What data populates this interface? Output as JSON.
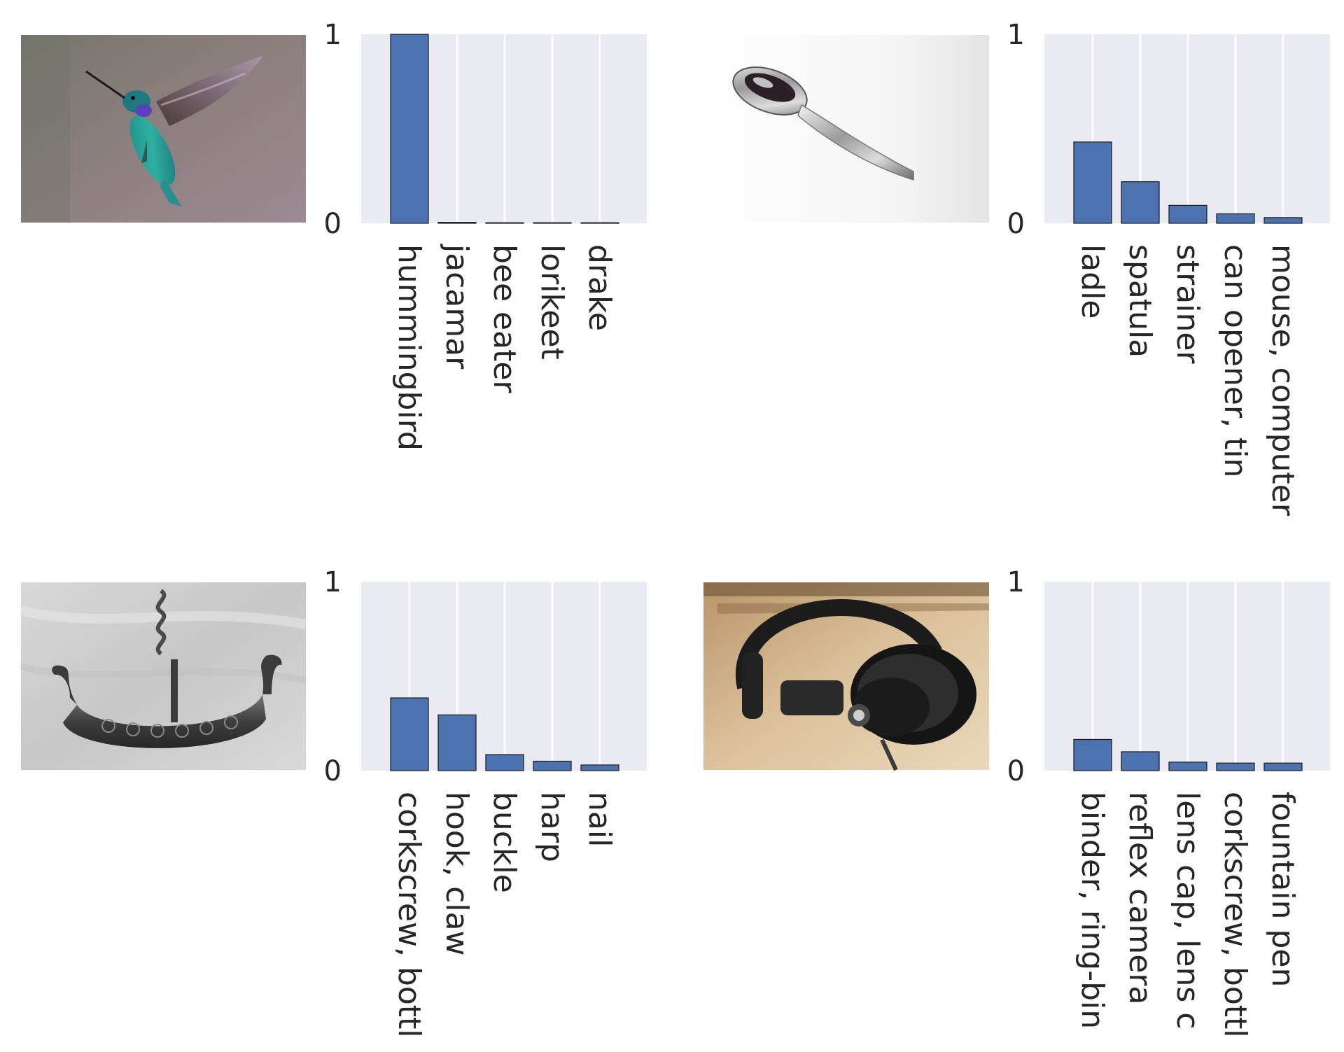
{
  "colors": {
    "bar": "#4c72b0",
    "bar_edge": "#1a1a1a",
    "axes_bg": "#eaeaf2",
    "grid": "#ffffff",
    "text": "#262626"
  },
  "chart_data": [
    {
      "type": "bar",
      "image": "hummingbird-photo",
      "categories": [
        "hummingbird",
        "jacamar",
        "bee eater",
        "lorikeet",
        "drake"
      ],
      "values": [
        1.0,
        0.005,
        0.001,
        0.001,
        0.001
      ],
      "yticks": [
        "0",
        "1"
      ],
      "ylim": [
        0,
        1
      ],
      "grid": "vertical"
    },
    {
      "type": "bar",
      "image": "spoon-photo",
      "categories": [
        "ladle",
        "spatula",
        "strainer",
        "can opener, tin",
        "mouse, computer"
      ],
      "values": [
        0.43,
        0.22,
        0.095,
        0.05,
        0.03
      ],
      "yticks": [
        "0",
        "1"
      ],
      "ylim": [
        0,
        1
      ],
      "grid": "vertical"
    },
    {
      "type": "bar",
      "image": "viking-ship-corkscrew-photo",
      "categories": [
        "corkscrew, bottl",
        "hook, claw",
        "buckle",
        "harp",
        "nail"
      ],
      "values": [
        0.385,
        0.295,
        0.085,
        0.05,
        0.03
      ],
      "yticks": [
        "0",
        "1"
      ],
      "ylim": [
        0,
        1
      ],
      "grid": "vertical"
    },
    {
      "type": "bar",
      "image": "headphones-photo",
      "categories": [
        "binder, ring-bin",
        "reflex camera",
        "lens cap, lens c",
        "corkscrew, bottl",
        "fountain pen"
      ],
      "values": [
        0.165,
        0.1,
        0.045,
        0.04,
        0.04
      ],
      "yticks": [
        "0",
        "1"
      ],
      "ylim": [
        0,
        1
      ],
      "grid": "vertical"
    }
  ]
}
